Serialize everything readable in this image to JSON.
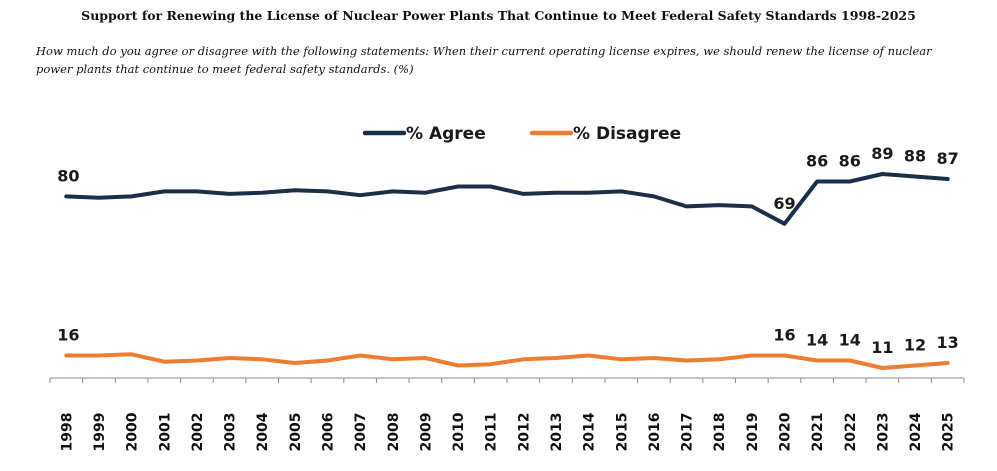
{
  "chart_data": {
    "type": "line",
    "title": "Support for Renewing the License of Nuclear Power Plants That Continue to Meet Federal Safety Standards 1998-2025",
    "subtitle": "How much do you agree or disagree with the following statements: When their current operating license expires, we should renew the license of nuclear power plants that continue to meet federal safety standards. (%)",
    "legend_position": "top-center",
    "grid": false,
    "ylim": [
      0,
      100
    ],
    "x": [
      "1998",
      "1999",
      "2000",
      "2001",
      "2002",
      "2003",
      "2004",
      "2005",
      "2006",
      "2007",
      "2008",
      "2009",
      "2010",
      "2011",
      "2012",
      "2013",
      "2014",
      "2015",
      "2016",
      "2017",
      "2018",
      "2019",
      "2020",
      "2021",
      "2022",
      "2023",
      "2024",
      "2025"
    ],
    "series": [
      {
        "name": "% Agree",
        "color": "#1b2f4b",
        "values": [
          80,
          79.5,
          80,
          82,
          82,
          81,
          81.5,
          82.5,
          82,
          80.5,
          82,
          81.5,
          84,
          84,
          81,
          81.5,
          81.5,
          82,
          80,
          76,
          76.5,
          76,
          69,
          86,
          86,
          89,
          88,
          87
        ],
        "labels": [
          {
            "index": 0,
            "text": "80"
          },
          {
            "index": 22,
            "text": "69"
          },
          {
            "index": 23,
            "text": "86"
          },
          {
            "index": 24,
            "text": "86"
          },
          {
            "index": 25,
            "text": "89"
          },
          {
            "index": 26,
            "text": "88"
          },
          {
            "index": 27,
            "text": "87"
          }
        ]
      },
      {
        "name": "% Disagree",
        "color": "#ed7d31",
        "values": [
          16,
          16,
          16.5,
          13.5,
          14,
          15,
          14.5,
          13,
          14,
          16,
          14.5,
          15,
          12,
          12.5,
          14.5,
          15,
          16,
          14.5,
          15,
          14,
          14.5,
          16,
          16,
          14,
          14,
          11,
          12,
          13
        ],
        "labels": [
          {
            "index": 0,
            "text": "16"
          },
          {
            "index": 22,
            "text": "16"
          },
          {
            "index": 23,
            "text": "14"
          },
          {
            "index": 24,
            "text": "14"
          },
          {
            "index": 25,
            "text": "11"
          },
          {
            "index": 26,
            "text": "12"
          },
          {
            "index": 27,
            "text": "13"
          }
        ]
      }
    ]
  }
}
